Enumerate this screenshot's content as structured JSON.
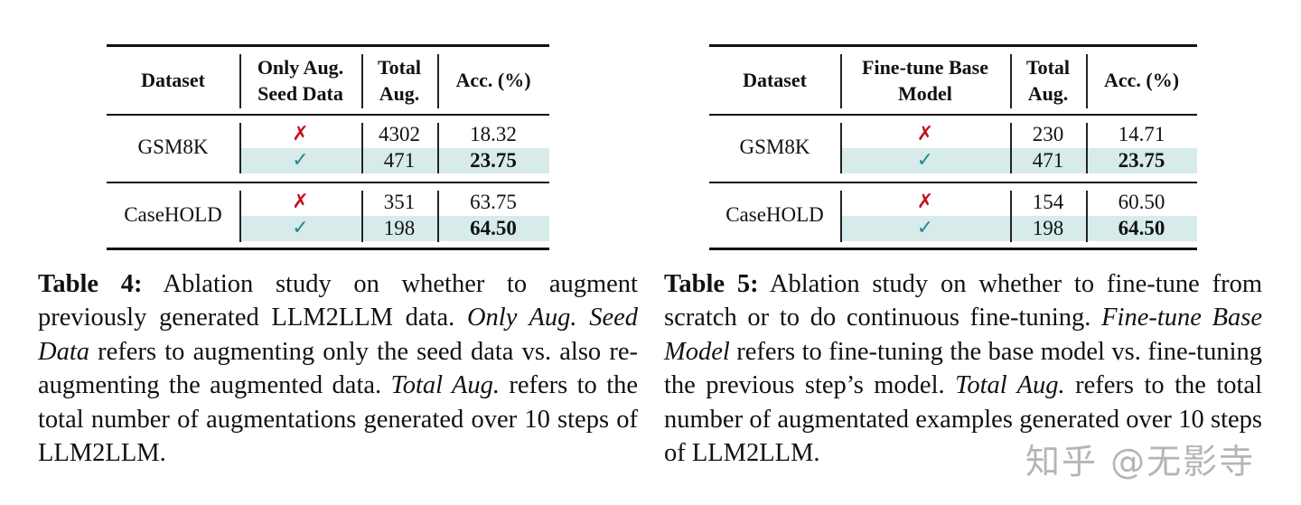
{
  "table4": {
    "headers": [
      [
        "Dataset"
      ],
      [
        "Only Aug.",
        "Seed Data"
      ],
      [
        "Total",
        "Aug."
      ],
      [
        "Acc. (%)"
      ]
    ],
    "groups": [
      {
        "dataset": "GSM8K",
        "rows": [
          {
            "flag": "cross",
            "symbol": "✗",
            "total": "4302",
            "acc": "18.32",
            "best": false
          },
          {
            "flag": "check",
            "symbol": "✓",
            "total": "471",
            "acc": "23.75",
            "best": true
          }
        ]
      },
      {
        "dataset": "CaseHOLD",
        "rows": [
          {
            "flag": "cross",
            "symbol": "✗",
            "total": "351",
            "acc": "63.75",
            "best": false
          },
          {
            "flag": "check",
            "symbol": "✓",
            "total": "198",
            "acc": "64.50",
            "best": true
          }
        ]
      }
    ],
    "caption": {
      "label": "Table 4:",
      "parts": [
        {
          "text": " Ablation study on whether to augment previously generated LLM2LLM data. ",
          "italic": false
        },
        {
          "text": "Only Aug. Seed Data",
          "italic": true
        },
        {
          "text": " refers to augmenting only the seed data vs. also re-augmenting the augmented data. ",
          "italic": false
        },
        {
          "text": "Total Aug.",
          "italic": true
        },
        {
          "text": " refers to the total number of augmentations generated over 10 steps of LLM2LLM.",
          "italic": false
        }
      ]
    }
  },
  "table5": {
    "headers": [
      [
        "Dataset"
      ],
      [
        "Fine-tune Base",
        "Model"
      ],
      [
        "Total",
        "Aug."
      ],
      [
        "Acc. (%)"
      ]
    ],
    "groups": [
      {
        "dataset": "GSM8K",
        "rows": [
          {
            "flag": "cross",
            "symbol": "✗",
            "total": "230",
            "acc": "14.71",
            "best": false
          },
          {
            "flag": "check",
            "symbol": "✓",
            "total": "471",
            "acc": "23.75",
            "best": true
          }
        ]
      },
      {
        "dataset": "CaseHOLD",
        "rows": [
          {
            "flag": "cross",
            "symbol": "✗",
            "total": "154",
            "acc": "60.50",
            "best": false
          },
          {
            "flag": "check",
            "symbol": "✓",
            "total": "198",
            "acc": "64.50",
            "best": true
          }
        ]
      }
    ],
    "caption": {
      "label": "Table 5:",
      "parts": [
        {
          "text": " Ablation study on whether to fine-tune from scratch or to do continuous fine-tuning. ",
          "italic": false
        },
        {
          "text": "Fine-tune Base Model",
          "italic": true
        },
        {
          "text": " refers to fine-tuning the base model vs. fine-tuning the previous step’s model. ",
          "italic": false
        },
        {
          "text": "Total Aug.",
          "italic": true
        },
        {
          "text": " refers to the total number of augmentated examples generated over 10 steps of LLM2LLM.",
          "italic": false
        }
      ]
    }
  },
  "colors": {
    "highlight_row": "#d7ebeb",
    "cross": "#c0141e",
    "check": "#1a8c8c"
  },
  "watermark": "知乎 @无影寺"
}
